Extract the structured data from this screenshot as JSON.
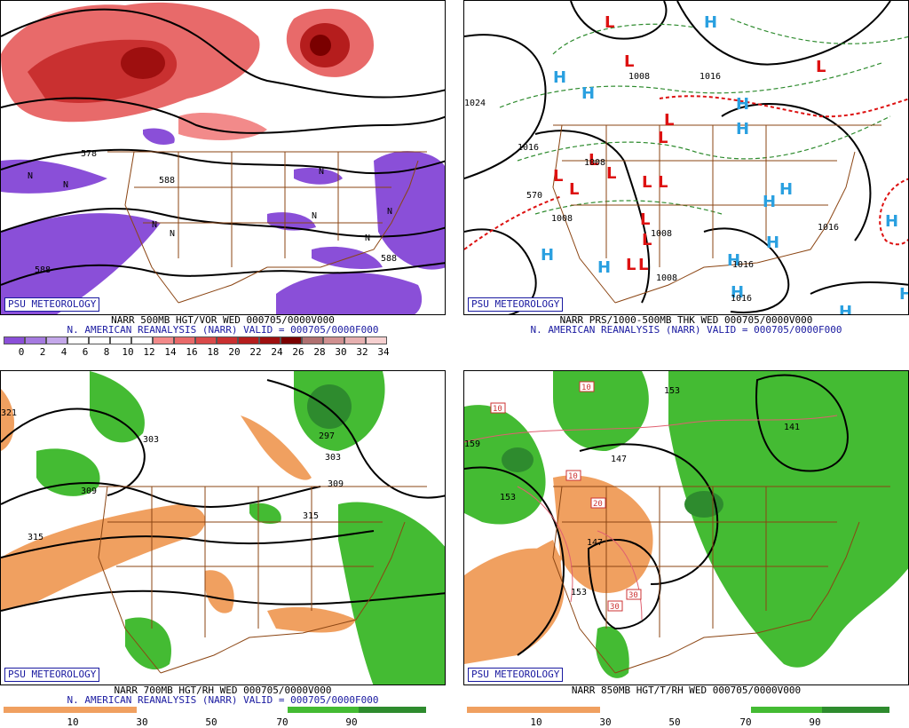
{
  "panels": [
    {
      "badge": "PSU METEOROLOGY",
      "line1": "NARR 500MB HGT/VOR WED 000705/0000V000",
      "line2": "N. AMERICAN REANALYSIS (NARR) VALID = 000705/0000F000",
      "colorbar": {
        "labels": [
          "0",
          "2",
          "4",
          "6",
          "8",
          "10",
          "12",
          "14",
          "16",
          "18",
          "20",
          "22",
          "24",
          "26",
          "28",
          "30",
          "32",
          "34"
        ],
        "colors": [
          "#8a4fd8",
          "#a57ae0",
          "#c4a8ea",
          "#ffffff",
          "#ffffff",
          "#ffffff",
          "#ffffff",
          "#f28a8a",
          "#e86a6a",
          "#d94a4a",
          "#c93030",
          "#b51d1d",
          "#9e0f0f",
          "#7a0000",
          "#b07070",
          "#d09090",
          "#e6b0b0",
          "#f6d0d0"
        ]
      },
      "map_labels": [
        "588",
        "578",
        "588",
        "588",
        "N",
        "N",
        "N",
        "N",
        "N",
        "N",
        "N",
        "N"
      ]
    },
    {
      "badge": "PSU METEOROLOGY",
      "line1": "NARR PRS/1000-500MB THK WED 000705/0000V000",
      "line2": "N. AMERICAN REANALYSIS (NARR) VALID = 000705/0000F000",
      "map_labels": [
        "1008",
        "1016",
        "1024",
        "1016",
        "1008",
        "1008",
        "1008",
        "1016",
        "1016",
        "1016",
        "570",
        "1008"
      ],
      "highs": 17,
      "lows": 14
    },
    {
      "badge": "PSU METEOROLOGY",
      "line1": "NARR 700MB HGT/RH WED 000705/0000V000",
      "line2": "N. AMERICAN REANALYSIS (NARR) VALID = 000705/0000F000",
      "scale_labels": [
        "10",
        "30",
        "50",
        "70",
        "90"
      ],
      "map_labels": [
        "321",
        "303",
        "297",
        "303",
        "309",
        "309",
        "315",
        "315"
      ]
    },
    {
      "badge": "PSU METEOROLOGY",
      "line1": "NARR 850MB HGT/T/RH WED 000705/0000V000",
      "scale_labels": [
        "10",
        "30",
        "50",
        "70",
        "90"
      ],
      "map_labels": [
        "153",
        "159",
        "153",
        "147",
        "147",
        "141",
        "153",
        "10",
        "10",
        "10",
        "20",
        "30",
        "30"
      ]
    }
  ],
  "colors": {
    "dry": "#f0a060",
    "moist": "#44bb33",
    "moist_dark": "#2e8b2e",
    "border": "#8b4513",
    "hgt": "#000000",
    "text_blue": "#1a1aa0",
    "high": "#2aa0e0",
    "low": "#dd1111"
  }
}
